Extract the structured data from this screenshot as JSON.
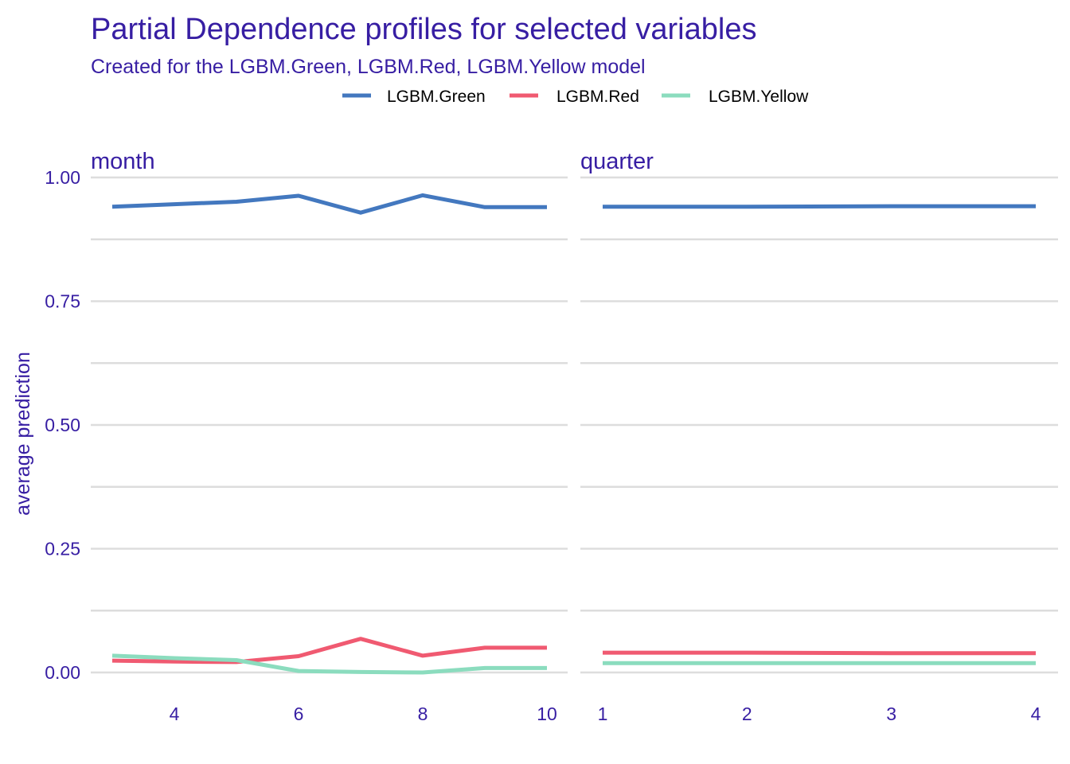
{
  "chart_data": {
    "type": "line",
    "title": "Partial Dependence profiles for selected variables",
    "subtitle": "Created for the LGBM.Green, LGBM.Red, LGBM.Yellow model",
    "ylabel": "average prediction",
    "xlabel": "",
    "legend_position": "top",
    "grid": true,
    "colors": {
      "LGBM.Green": "#4378bf",
      "LGBM.Red": "#f05a71",
      "LGBM.Yellow": "#8bdcbe"
    },
    "y_ticks": [
      0.0,
      0.25,
      0.5,
      0.75,
      1.0
    ],
    "y_tick_labels": [
      "0.00",
      "0.25",
      "0.50",
      "0.75",
      "1.00"
    ],
    "ylim": [
      0.0,
      1.0
    ],
    "legend": [
      "LGBM.Green",
      "LGBM.Red",
      "LGBM.Yellow"
    ],
    "panels": [
      {
        "label": "month",
        "xlim": [
          3,
          10
        ],
        "x_ticks": [
          4,
          6,
          8,
          10
        ],
        "x": [
          3,
          4,
          5,
          6,
          7,
          8,
          9,
          10
        ],
        "series": [
          {
            "name": "LGBM.Green",
            "values": [
              0.941,
              0.946,
              0.951,
              0.963,
              0.929,
              0.964,
              0.94,
              0.94
            ]
          },
          {
            "name": "LGBM.Red",
            "values": [
              0.024,
              0.022,
              0.021,
              0.033,
              0.068,
              0.034,
              0.05,
              0.05
            ]
          },
          {
            "name": "LGBM.Yellow",
            "values": [
              0.034,
              0.029,
              0.025,
              0.003,
              0.001,
              0.0,
              0.009,
              0.009
            ]
          }
        ]
      },
      {
        "label": "quarter",
        "xlim": [
          1,
          4
        ],
        "x_ticks": [
          1,
          2,
          3,
          4
        ],
        "x": [
          1,
          2,
          3,
          4
        ],
        "series": [
          {
            "name": "LGBM.Green",
            "values": [
              0.941,
              0.941,
              0.942,
              0.942
            ]
          },
          {
            "name": "LGBM.Red",
            "values": [
              0.04,
              0.04,
              0.039,
              0.039
            ]
          },
          {
            "name": "LGBM.Yellow",
            "values": [
              0.019,
              0.019,
              0.019,
              0.019
            ]
          }
        ]
      }
    ]
  }
}
